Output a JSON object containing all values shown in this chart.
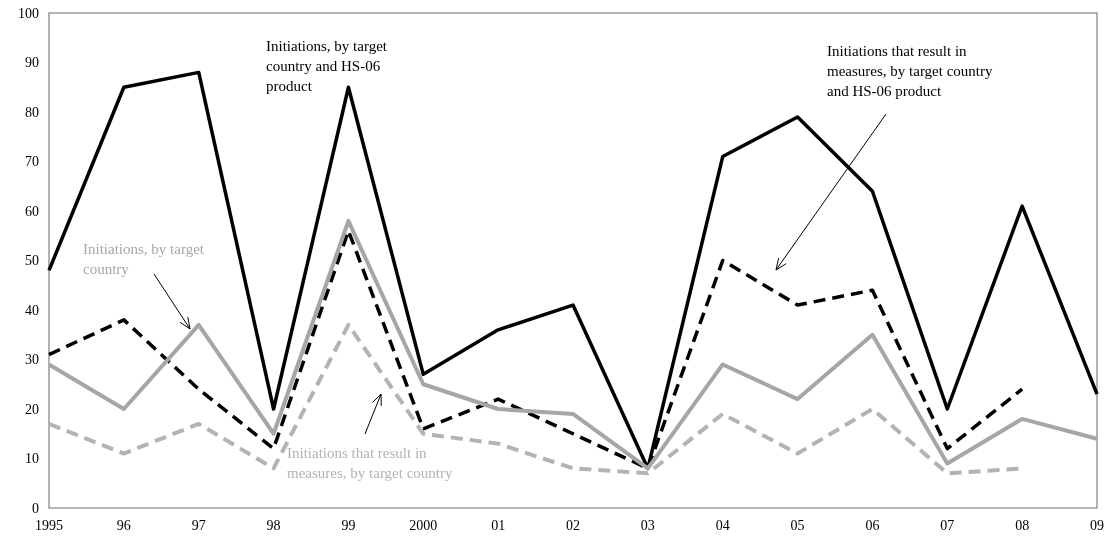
{
  "chart_data": {
    "type": "line",
    "categories": [
      "1995",
      "96",
      "97",
      "98",
      "99",
      "2000",
      "01",
      "02",
      "03",
      "04",
      "05",
      "06",
      "07",
      "08",
      "09"
    ],
    "series": [
      {
        "name": "Initiations, by target country and HS-06 product",
        "color": "#000000",
        "line_style": "solid",
        "values": [
          48,
          85,
          88,
          20,
          85,
          27,
          36,
          41,
          8,
          71,
          79,
          64,
          20,
          61,
          23
        ]
      },
      {
        "name": "Initiations that result in measures, by target country and HS-06 product",
        "color": "#000000",
        "line_style": "dashed",
        "values": [
          31,
          38,
          24,
          12,
          56,
          16,
          22,
          15,
          8,
          50,
          41,
          44,
          12,
          24,
          null
        ]
      },
      {
        "name": "Initiations, by target country",
        "color": "#a6a6a6",
        "line_style": "solid",
        "values": [
          29,
          20,
          37,
          15,
          58,
          25,
          20,
          19,
          8,
          29,
          22,
          35,
          9,
          18,
          14
        ]
      },
      {
        "name": "Initiations that result in measures, by target country",
        "color": "#b3b3b3",
        "line_style": "dashed",
        "values": [
          17,
          11,
          17,
          8,
          37,
          15,
          13,
          8,
          7,
          19,
          11,
          20,
          7,
          8,
          null
        ]
      }
    ],
    "ylim": [
      0,
      100
    ],
    "yticks": [
      0,
      10,
      20,
      30,
      40,
      50,
      60,
      70,
      80,
      90,
      100
    ],
    "grid": false,
    "marker": "none"
  }
}
